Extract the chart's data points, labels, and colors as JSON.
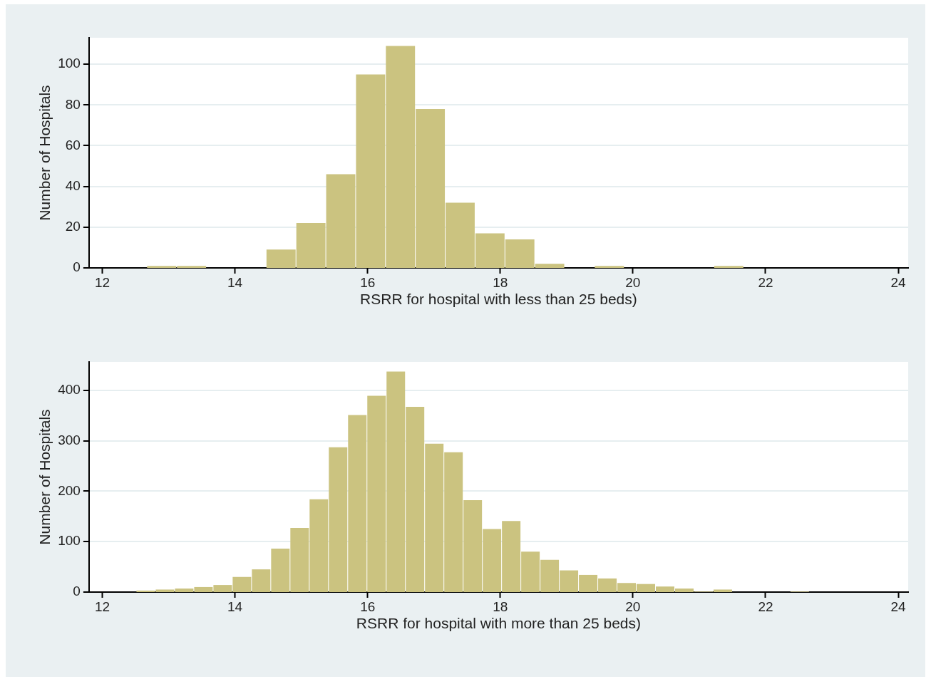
{
  "chart_data": [
    {
      "type": "histogram",
      "xlabel": "RSRR for hospital with less than 25 beds)",
      "ylabel": "Number of Hospitals",
      "color": "#cbc380",
      "bins": [
        12.67,
        13.12,
        13.57,
        14.02,
        14.47,
        14.92,
        15.37,
        15.82,
        16.27,
        16.72,
        17.17,
        17.62,
        18.07,
        18.52,
        18.97,
        19.42,
        19.87,
        20.32,
        20.77,
        21.22,
        21.67
      ],
      "values": [
        1,
        1,
        0,
        0,
        9,
        22,
        46,
        95,
        109,
        78,
        32,
        17,
        14,
        2,
        0,
        1,
        0,
        0,
        0,
        1
      ],
      "xlim": [
        11.8,
        24.15
      ],
      "xticks": [
        12,
        14,
        16,
        18,
        20,
        22,
        24
      ],
      "ylim": [
        0,
        113
      ],
      "yticks": [
        0,
        20,
        40,
        60,
        80,
        100
      ],
      "grid": "y"
    },
    {
      "type": "histogram",
      "xlabel": "RSRR for hospital with more than 25 beds)",
      "ylabel": "Number of Hospitals",
      "color": "#cbc380",
      "bins": [
        12.51,
        12.8,
        13.09,
        13.38,
        13.67,
        13.96,
        14.25,
        14.54,
        14.83,
        15.12,
        15.41,
        15.7,
        15.99,
        16.28,
        16.57,
        16.86,
        17.15,
        17.44,
        17.73,
        18.02,
        18.31,
        18.6,
        18.89,
        19.18,
        19.47,
        19.76,
        20.05,
        20.34,
        20.63,
        20.92,
        21.21,
        21.5,
        21.79,
        22.08,
        22.37,
        22.66
      ],
      "values": [
        3,
        5,
        7,
        10,
        14,
        30,
        45,
        86,
        127,
        184,
        287,
        351,
        389,
        437,
        367,
        294,
        277,
        182,
        125,
        141,
        80,
        64,
        43,
        34,
        27,
        18,
        16,
        11,
        7,
        1,
        5,
        0,
        0,
        0,
        1
      ],
      "xlim": [
        11.8,
        24.15
      ],
      "xticks": [
        12,
        14,
        16,
        18,
        20,
        22,
        24
      ],
      "ylim": [
        0,
        456
      ],
      "yticks": [
        0,
        100,
        200,
        300,
        400
      ],
      "grid": "y"
    }
  ]
}
